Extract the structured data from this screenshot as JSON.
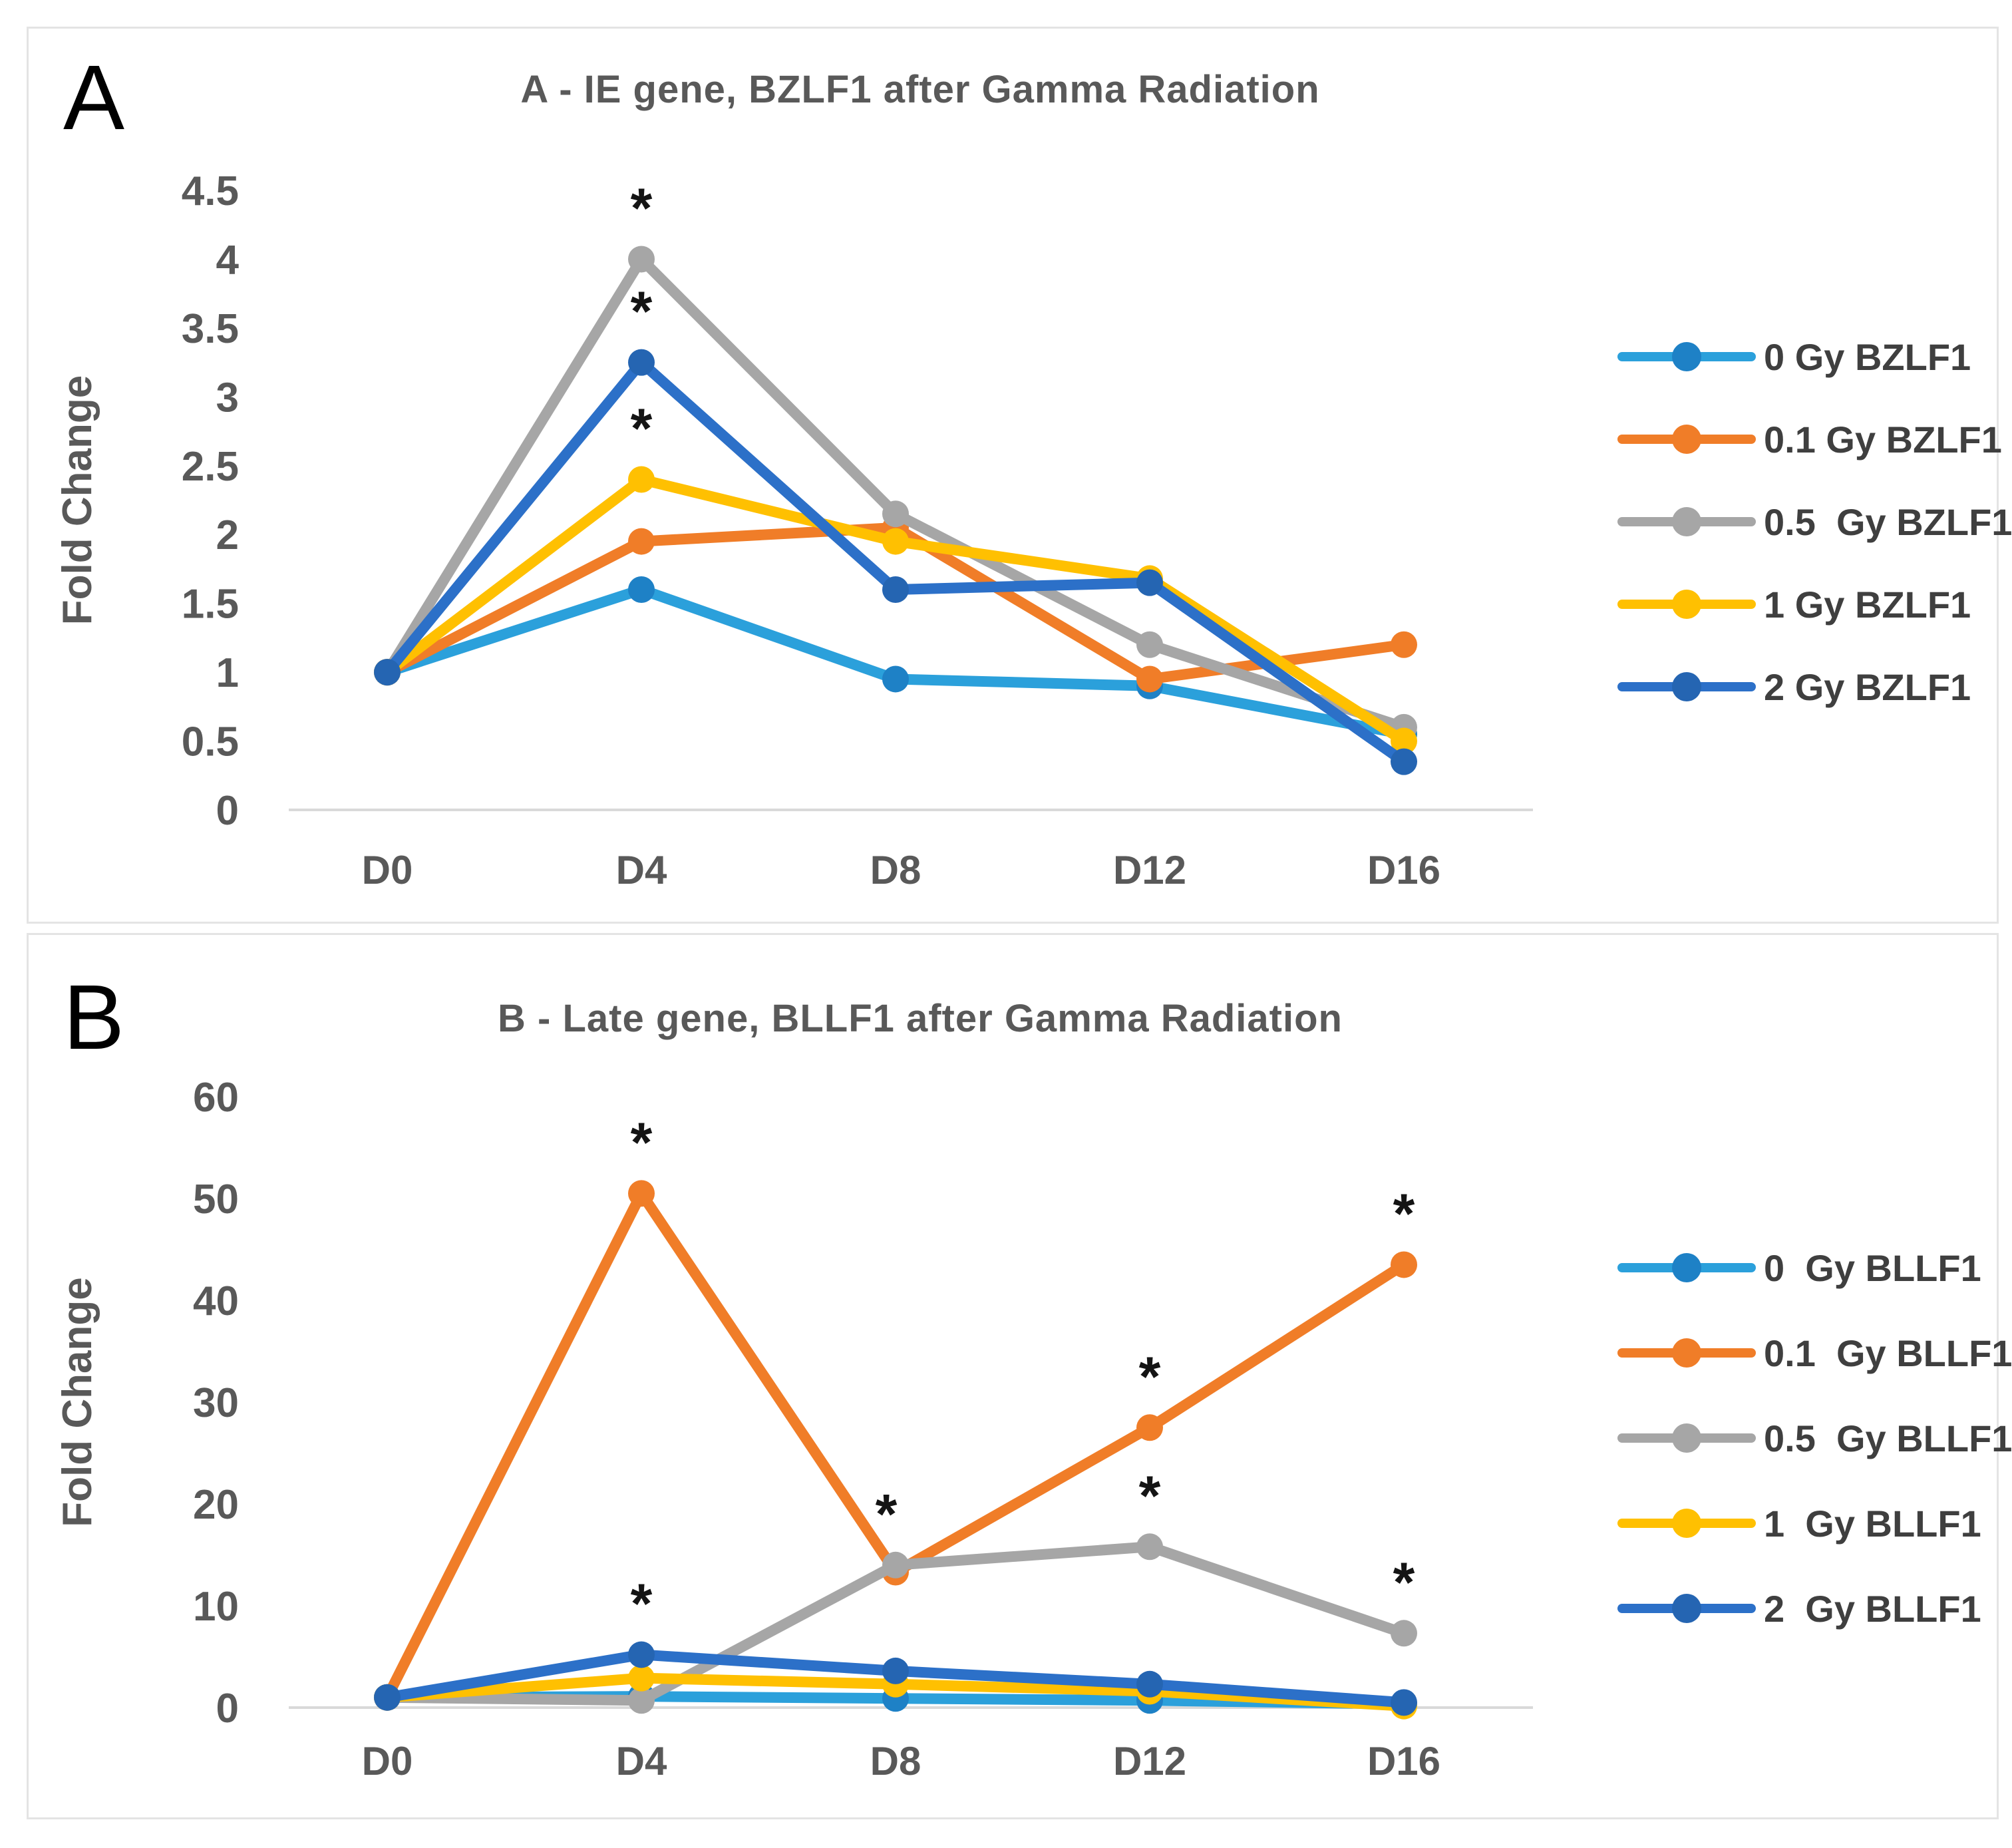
{
  "page": {
    "background": "#ffffff"
  },
  "panels": [
    {
      "panel_label": "A",
      "title": "A - IE gene, BZLF1 after Gamma Radiation",
      "y_axis_label": "Fold Change"
    },
    {
      "panel_label": "B",
      "title": "B - Late gene, BLLF1 after Gamma Radiation",
      "y_axis_label": "Fold Change"
    }
  ],
  "colors": {
    "axis_line": "#D9D9D9",
    "tick_text": "#595959",
    "title_text": "#595959",
    "legend_text": "#3F3F3F",
    "asterisk": "#141414"
  },
  "chart_data": [
    {
      "type": "line",
      "title": "A - IE gene, BZLF1 after Gamma Radiation",
      "xlabel": "",
      "ylabel": "Fold Change",
      "categories": [
        "D0",
        "D4",
        "D8",
        "D12",
        "D16"
      ],
      "ylim": [
        0,
        4.5
      ],
      "ytick_step": 0.5,
      "grid": false,
      "legend_position": "right",
      "series": [
        {
          "name": "0 Gy BZLF1",
          "color": "#2BA0DB",
          "marker_color": "#1E81C6",
          "values": [
            1,
            1.6,
            0.95,
            0.9,
            0.55
          ]
        },
        {
          "name": "0.1 Gy BZLF1",
          "color": "#F07D28",
          "marker_color": "#F07D28",
          "values": [
            1,
            1.95,
            2.05,
            0.95,
            1.2
          ]
        },
        {
          "name": "0.5  Gy BZLF1",
          "color": "#A6A6A6",
          "marker_color": "#A6A6A6",
          "values": [
            1,
            4.0,
            2.15,
            1.2,
            0.6
          ]
        },
        {
          "name": "1 Gy BZLF1",
          "color": "#FFC001",
          "marker_color": "#FFC001",
          "values": [
            1,
            2.4,
            1.95,
            1.68,
            0.5
          ]
        },
        {
          "name": "2 Gy BZLF1",
          "color": "#2C70C8",
          "marker_color": "#2565B2",
          "values": [
            1,
            3.25,
            1.6,
            1.65,
            0.35
          ]
        }
      ],
      "annotations": [
        {
          "category": "D4",
          "series": "0.5  Gy BZLF1",
          "text": "*"
        },
        {
          "category": "D4",
          "series": "2 Gy BZLF1",
          "text": "*"
        },
        {
          "category": "D4",
          "series": "1 Gy BZLF1",
          "text": "*"
        }
      ]
    },
    {
      "type": "line",
      "title": "B - Late gene, BLLF1 after Gamma Radiation",
      "xlabel": "",
      "ylabel": "Fold Change",
      "categories": [
        "D0",
        "D4",
        "D8",
        "D12",
        "D16"
      ],
      "ylim": [
        0,
        60
      ],
      "ytick_step": 10,
      "grid": false,
      "legend_position": "right",
      "series": [
        {
          "name": "0  Gy BLLF1",
          "color": "#2BA0DB",
          "marker_color": "#1E81C6",
          "values": [
            1,
            1.1,
            0.9,
            0.7,
            0.35
          ]
        },
        {
          "name": "0.1  Gy BLLF1",
          "color": "#F07D28",
          "marker_color": "#F07D28",
          "values": [
            1,
            50.5,
            13.3,
            27.5,
            43.5
          ]
        },
        {
          "name": "0.5  Gy BLLF1",
          "color": "#A6A6A6",
          "marker_color": "#A6A6A6",
          "values": [
            1,
            0.7,
            14.0,
            15.8,
            7.3
          ]
        },
        {
          "name": "1  Gy BLLF1",
          "color": "#FFC001",
          "marker_color": "#FFC001",
          "values": [
            1,
            2.9,
            2.3,
            1.6,
            0.15
          ]
        },
        {
          "name": "2  Gy BLLF1",
          "color": "#2C70C8",
          "marker_color": "#2565B2",
          "values": [
            1,
            5.2,
            3.6,
            2.3,
            0.5
          ]
        }
      ],
      "annotations": [
        {
          "category": "D4",
          "series": "0.1  Gy BLLF1",
          "text": "*"
        },
        {
          "category": "D4",
          "series": "2  Gy BLLF1",
          "text": "*"
        },
        {
          "category": "D8",
          "series": "0.5  Gy BLLF1",
          "text": "*",
          "dx": -14
        },
        {
          "category": "D12",
          "series": "0.1  Gy BLLF1",
          "text": "*"
        },
        {
          "category": "D12",
          "series": "0.5  Gy BLLF1",
          "text": "*"
        },
        {
          "category": "D16",
          "series": "0.1  Gy BLLF1",
          "text": "*"
        },
        {
          "category": "D16",
          "series": "0.5  Gy BLLF1",
          "text": "*"
        }
      ]
    }
  ]
}
